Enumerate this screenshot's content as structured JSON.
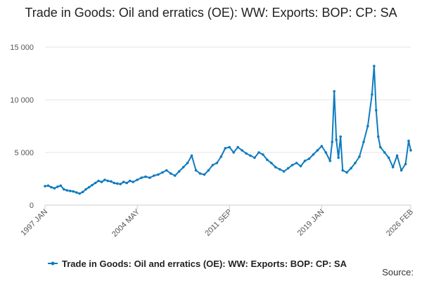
{
  "chart_data": {
    "type": "line",
    "title": "Trade in Goods: Oil and erratics (OE): WW: Exports: BOP: CP: SA",
    "xlabel": "",
    "ylabel": "",
    "ylim": [
      0,
      15000
    ],
    "y_ticks": [
      {
        "value": 0,
        "label": "0"
      },
      {
        "value": 5000,
        "label": "5 000"
      },
      {
        "value": 10000,
        "label": "10 000"
      },
      {
        "value": 15000,
        "label": "15 000"
      }
    ],
    "x_ticks": [
      {
        "value": "1997-01",
        "label": "1997 JAN"
      },
      {
        "value": "2004-05",
        "label": "2004 MAY"
      },
      {
        "value": "2011-09",
        "label": "2011 SEP"
      },
      {
        "value": "2019-01",
        "label": "2019 JAN"
      },
      {
        "value": "2026-02",
        "label": "2026 FEB"
      }
    ],
    "xlim": [
      "1997-01",
      "2026-02"
    ],
    "grid": "horizontal",
    "legend_position": "bottom",
    "series": [
      {
        "name": "Trade in Goods: Oil and erratics (OE): WW: Exports: BOP: CP: SA",
        "color": "#0f7bbf",
        "points": [
          [
            "1997-01",
            1800
          ],
          [
            "1997-04",
            1850
          ],
          [
            "1997-07",
            1700
          ],
          [
            "1997-10",
            1600
          ],
          [
            "1998-01",
            1750
          ],
          [
            "1998-04",
            1850
          ],
          [
            "1998-07",
            1500
          ],
          [
            "1998-10",
            1400
          ],
          [
            "1999-01",
            1350
          ],
          [
            "1999-04",
            1300
          ],
          [
            "1999-07",
            1200
          ],
          [
            "1999-10",
            1100
          ],
          [
            "2000-01",
            1250
          ],
          [
            "2000-04",
            1500
          ],
          [
            "2000-07",
            1700
          ],
          [
            "2000-10",
            1900
          ],
          [
            "2001-01",
            2100
          ],
          [
            "2001-04",
            2300
          ],
          [
            "2001-07",
            2200
          ],
          [
            "2001-10",
            2400
          ],
          [
            "2002-01",
            2300
          ],
          [
            "2002-04",
            2250
          ],
          [
            "2002-07",
            2100
          ],
          [
            "2002-10",
            2050
          ],
          [
            "2003-01",
            2000
          ],
          [
            "2003-04",
            2200
          ],
          [
            "2003-07",
            2100
          ],
          [
            "2003-10",
            2300
          ],
          [
            "2004-01",
            2200
          ],
          [
            "2004-05",
            2400
          ],
          [
            "2004-09",
            2600
          ],
          [
            "2005-01",
            2700
          ],
          [
            "2005-05",
            2600
          ],
          [
            "2005-09",
            2800
          ],
          [
            "2006-01",
            2900
          ],
          [
            "2006-05",
            3100
          ],
          [
            "2006-09",
            3300
          ],
          [
            "2007-01",
            3000
          ],
          [
            "2007-05",
            2800
          ],
          [
            "2007-09",
            3200
          ],
          [
            "2008-01",
            3600
          ],
          [
            "2008-05",
            4000
          ],
          [
            "2008-09",
            4700
          ],
          [
            "2009-01",
            3300
          ],
          [
            "2009-05",
            3000
          ],
          [
            "2009-09",
            2900
          ],
          [
            "2010-01",
            3300
          ],
          [
            "2010-05",
            3800
          ],
          [
            "2010-09",
            4000
          ],
          [
            "2011-01",
            4600
          ],
          [
            "2011-05",
            5400
          ],
          [
            "2011-09",
            5500
          ],
          [
            "2012-01",
            5000
          ],
          [
            "2012-05",
            5500
          ],
          [
            "2012-09",
            5200
          ],
          [
            "2013-01",
            4900
          ],
          [
            "2013-05",
            4700
          ],
          [
            "2013-09",
            4500
          ],
          [
            "2014-01",
            5000
          ],
          [
            "2014-05",
            4800
          ],
          [
            "2014-09",
            4300
          ],
          [
            "2015-01",
            4000
          ],
          [
            "2015-05",
            3600
          ],
          [
            "2015-09",
            3400
          ],
          [
            "2016-01",
            3200
          ],
          [
            "2016-05",
            3500
          ],
          [
            "2016-09",
            3800
          ],
          [
            "2017-01",
            4000
          ],
          [
            "2017-05",
            3700
          ],
          [
            "2017-09",
            4200
          ],
          [
            "2018-01",
            4400
          ],
          [
            "2018-05",
            4800
          ],
          [
            "2018-09",
            5200
          ],
          [
            "2019-01",
            5600
          ],
          [
            "2019-05",
            5000
          ],
          [
            "2019-09",
            4200
          ],
          [
            "2019-11",
            6000
          ],
          [
            "2020-01",
            10800
          ],
          [
            "2020-03",
            6200
          ],
          [
            "2020-05",
            4500
          ],
          [
            "2020-07",
            6500
          ],
          [
            "2020-09",
            3300
          ],
          [
            "2021-01",
            3100
          ],
          [
            "2021-05",
            3500
          ],
          [
            "2021-09",
            4000
          ],
          [
            "2022-01",
            4600
          ],
          [
            "2022-05",
            6000
          ],
          [
            "2022-09",
            7500
          ],
          [
            "2023-01",
            10500
          ],
          [
            "2023-03",
            13200
          ],
          [
            "2023-05",
            9000
          ],
          [
            "2023-07",
            6500
          ],
          [
            "2023-09",
            5500
          ],
          [
            "2024-01",
            5000
          ],
          [
            "2024-05",
            4500
          ],
          [
            "2024-09",
            3600
          ],
          [
            "2025-01",
            4700
          ],
          [
            "2025-05",
            3300
          ],
          [
            "2025-09",
            3900
          ],
          [
            "2025-12",
            6100
          ],
          [
            "2026-02",
            5200
          ]
        ]
      }
    ]
  },
  "source_label": "Source:"
}
